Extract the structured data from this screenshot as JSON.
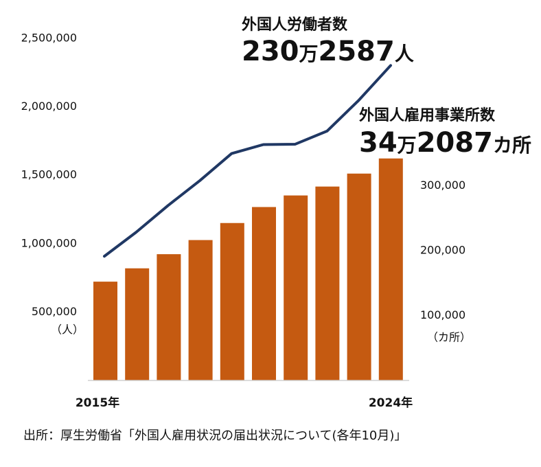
{
  "chart_data": {
    "type": "bar",
    "x_start_label": "2015年",
    "x_end_label": "2024年",
    "left_axis": {
      "unit": "（人）",
      "ticks": [
        500000,
        1000000,
        1500000,
        2000000,
        2500000
      ],
      "tick_labels": [
        "500,000",
        "1,000,000",
        "1,500,000",
        "2,000,000",
        "2,500,000"
      ],
      "ylim": [
        0,
        2500000
      ]
    },
    "right_axis": {
      "unit": "（カ所）",
      "ticks": [
        100000,
        200000,
        300000
      ],
      "tick_labels": [
        "100,000",
        "200,000",
        "300,000"
      ],
      "ylim": [
        0,
        400000
      ]
    },
    "series": [
      {
        "kind": "bar",
        "axis": "right",
        "color": "#C55A11",
        "annotation": {
          "title": "外国人雇用事業所数",
          "value_number_1": "34",
          "value_unit_1": "万",
          "value_number_2": "2087",
          "value_unit_2": "カ所"
        },
        "values": [
          152261,
          172798,
          194595,
          216348,
          242608,
          267243,
          285080,
          298790,
          318775,
          342087
        ]
      },
      {
        "kind": "line",
        "axis": "left",
        "color": "#203864",
        "annotation": {
          "title": "外国人労働者数",
          "value_number_1": "230",
          "value_unit_1": "万",
          "value_number_2": "2587",
          "value_unit_2": "人"
        },
        "values": [
          907896,
          1083769,
          1278670,
          1460463,
          1658804,
          1724328,
          1727221,
          1822725,
          2048675,
          2302587
        ]
      }
    ]
  },
  "source": {
    "text": "出所：厚生労働省「外国人雇用状況の届出状況について(各年10月)」"
  }
}
